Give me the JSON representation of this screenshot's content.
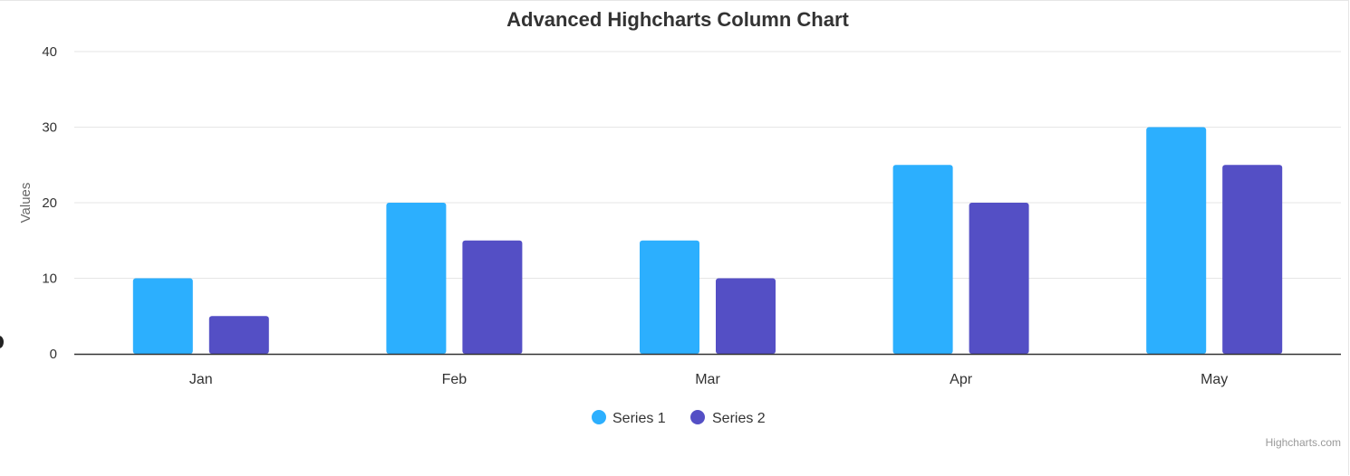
{
  "chart_data": {
    "type": "bar",
    "title": "Advanced Highcharts Column Chart",
    "xlabel": "",
    "ylabel": "Values",
    "categories": [
      "Jan",
      "Feb",
      "Mar",
      "Apr",
      "May"
    ],
    "series": [
      {
        "name": "Series 1",
        "values": [
          10,
          20,
          15,
          25,
          30
        ],
        "color": "#2caffe"
      },
      {
        "name": "Series 2",
        "values": [
          5,
          15,
          10,
          20,
          25
        ],
        "color": "#544fc5"
      }
    ],
    "ylim": [
      0,
      40
    ],
    "yticks": [
      0,
      10,
      20,
      30,
      40
    ],
    "grid": true,
    "legend": "bottom-center"
  },
  "credits": "Highcharts.com",
  "colors": {
    "grid": "#e6e6e6",
    "axis_line": "#333333",
    "text": "#333333",
    "label": "#666666",
    "credits": "#999999"
  }
}
